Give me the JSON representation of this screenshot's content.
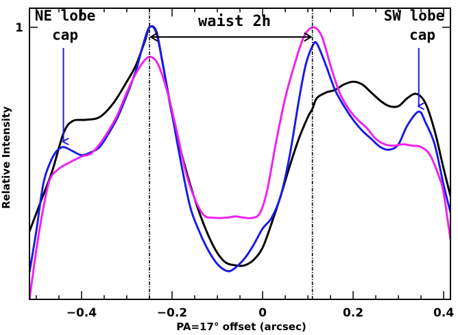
{
  "chart_data": {
    "type": "line",
    "title": "",
    "xlabel": "PA=17° offset (arcsec)",
    "ylabel": "Relative Intensity",
    "xlim": [
      -0.515,
      0.415
    ],
    "ylim": [
      0.0,
      1.07
    ],
    "x_ticks": [
      -0.4,
      -0.2,
      0,
      0.2,
      0.4
    ],
    "x_tick_labels": [
      "−0.4",
      "−0.2",
      "0",
      "0.2",
      "0.4"
    ],
    "y_ticks": [
      1
    ],
    "y_tick_labels": [
      "1"
    ],
    "vertical_lines": [
      -0.25,
      0.11
    ],
    "series": [
      {
        "name": "black",
        "color": "#000000",
        "points": [
          [
            -0.515,
            0.25
          ],
          [
            -0.49,
            0.36
          ],
          [
            -0.465,
            0.47
          ],
          [
            -0.44,
            0.61
          ],
          [
            -0.42,
            0.655
          ],
          [
            -0.39,
            0.66
          ],
          [
            -0.36,
            0.67
          ],
          [
            -0.33,
            0.72
          ],
          [
            -0.3,
            0.8
          ],
          [
            -0.28,
            0.86
          ],
          [
            -0.26,
            0.95
          ],
          [
            -0.25,
            1.0
          ],
          [
            -0.235,
            0.985
          ],
          [
            -0.22,
            0.86
          ],
          [
            -0.2,
            0.68
          ],
          [
            -0.17,
            0.48
          ],
          [
            -0.14,
            0.32
          ],
          [
            -0.11,
            0.2
          ],
          [
            -0.085,
            0.14
          ],
          [
            -0.06,
            0.125
          ],
          [
            -0.04,
            0.125
          ],
          [
            -0.02,
            0.145
          ],
          [
            0.0,
            0.19
          ],
          [
            0.02,
            0.28
          ],
          [
            0.04,
            0.38
          ],
          [
            0.06,
            0.49
          ],
          [
            0.08,
            0.59
          ],
          [
            0.1,
            0.67
          ],
          [
            0.11,
            0.7
          ],
          [
            0.12,
            0.74
          ],
          [
            0.14,
            0.76
          ],
          [
            0.16,
            0.77
          ],
          [
            0.18,
            0.79
          ],
          [
            0.2,
            0.8
          ],
          [
            0.22,
            0.79
          ],
          [
            0.24,
            0.76
          ],
          [
            0.26,
            0.73
          ],
          [
            0.28,
            0.71
          ],
          [
            0.3,
            0.71
          ],
          [
            0.32,
            0.74
          ],
          [
            0.34,
            0.755
          ],
          [
            0.36,
            0.72
          ],
          [
            0.38,
            0.62
          ],
          [
            0.4,
            0.48
          ],
          [
            0.415,
            0.38
          ]
        ]
      },
      {
        "name": "blue",
        "color": "#1a1ae6",
        "points": [
          [
            -0.515,
            0.1
          ],
          [
            -0.5,
            0.25
          ],
          [
            -0.485,
            0.42
          ],
          [
            -0.47,
            0.5
          ],
          [
            -0.455,
            0.545
          ],
          [
            -0.44,
            0.56
          ],
          [
            -0.42,
            0.545
          ],
          [
            -0.4,
            0.53
          ],
          [
            -0.38,
            0.54
          ],
          [
            -0.36,
            0.56
          ],
          [
            -0.34,
            0.61
          ],
          [
            -0.32,
            0.67
          ],
          [
            -0.3,
            0.75
          ],
          [
            -0.28,
            0.84
          ],
          [
            -0.265,
            0.93
          ],
          [
            -0.25,
            1.0
          ],
          [
            -0.235,
            0.98
          ],
          [
            -0.22,
            0.86
          ],
          [
            -0.2,
            0.68
          ],
          [
            -0.18,
            0.5
          ],
          [
            -0.16,
            0.34
          ],
          [
            -0.14,
            0.25
          ],
          [
            -0.12,
            0.18
          ],
          [
            -0.1,
            0.13
          ],
          [
            -0.08,
            0.105
          ],
          [
            -0.065,
            0.11
          ],
          [
            -0.04,
            0.15
          ],
          [
            -0.02,
            0.2
          ],
          [
            0.0,
            0.26
          ],
          [
            0.02,
            0.3
          ],
          [
            0.04,
            0.38
          ],
          [
            0.06,
            0.53
          ],
          [
            0.08,
            0.73
          ],
          [
            0.095,
            0.86
          ],
          [
            0.11,
            0.93
          ],
          [
            0.12,
            0.94
          ],
          [
            0.14,
            0.86
          ],
          [
            0.16,
            0.77
          ],
          [
            0.18,
            0.71
          ],
          [
            0.2,
            0.66
          ],
          [
            0.22,
            0.62
          ],
          [
            0.24,
            0.59
          ],
          [
            0.26,
            0.56
          ],
          [
            0.28,
            0.55
          ],
          [
            0.3,
            0.57
          ],
          [
            0.32,
            0.64
          ],
          [
            0.345,
            0.69
          ],
          [
            0.36,
            0.65
          ],
          [
            0.38,
            0.57
          ],
          [
            0.4,
            0.42
          ],
          [
            0.415,
            0.32
          ]
        ]
      },
      {
        "name": "magenta",
        "color": "#ee22ee",
        "points": [
          [
            -0.515,
            0.0
          ],
          [
            -0.5,
            0.18
          ],
          [
            -0.485,
            0.33
          ],
          [
            -0.47,
            0.44
          ],
          [
            -0.45,
            0.48
          ],
          [
            -0.43,
            0.5
          ],
          [
            -0.4,
            0.525
          ],
          [
            -0.38,
            0.535
          ],
          [
            -0.36,
            0.57
          ],
          [
            -0.34,
            0.62
          ],
          [
            -0.32,
            0.68
          ],
          [
            -0.3,
            0.76
          ],
          [
            -0.28,
            0.83
          ],
          [
            -0.26,
            0.88
          ],
          [
            -0.245,
            0.89
          ],
          [
            -0.23,
            0.86
          ],
          [
            -0.21,
            0.76
          ],
          [
            -0.19,
            0.62
          ],
          [
            -0.17,
            0.47
          ],
          [
            -0.15,
            0.37
          ],
          [
            -0.13,
            0.31
          ],
          [
            -0.11,
            0.3
          ],
          [
            -0.08,
            0.3
          ],
          [
            -0.06,
            0.305
          ],
          [
            -0.04,
            0.3
          ],
          [
            -0.02,
            0.3
          ],
          [
            -0.005,
            0.32
          ],
          [
            0.01,
            0.4
          ],
          [
            0.03,
            0.58
          ],
          [
            0.05,
            0.74
          ],
          [
            0.07,
            0.86
          ],
          [
            0.09,
            0.96
          ],
          [
            0.11,
            1.0
          ],
          [
            0.13,
            0.97
          ],
          [
            0.15,
            0.86
          ],
          [
            0.17,
            0.76
          ],
          [
            0.19,
            0.7
          ],
          [
            0.21,
            0.66
          ],
          [
            0.23,
            0.63
          ],
          [
            0.25,
            0.59
          ],
          [
            0.27,
            0.57
          ],
          [
            0.29,
            0.565
          ],
          [
            0.31,
            0.57
          ],
          [
            0.33,
            0.565
          ],
          [
            0.35,
            0.56
          ],
          [
            0.37,
            0.53
          ],
          [
            0.39,
            0.45
          ],
          [
            0.4,
            0.39
          ],
          [
            0.415,
            0.22
          ]
        ]
      }
    ],
    "annotations": {
      "ne_lobe": "NE lobe",
      "ne_cap": "cap",
      "sw_lobe": "SW lobe",
      "sw_cap": "cap",
      "waist": "waist 2h"
    },
    "annotation_arrows": [
      {
        "name": "ne-cap-arrow",
        "x": -0.44,
        "y_from": 1.03,
        "y_to": 0.57
      },
      {
        "name": "sw-cap-arrow",
        "x": 0.345,
        "y_from": 1.03,
        "y_to": 0.7
      }
    ],
    "waist_arrow": {
      "x_from": -0.25,
      "x_to": 0.11,
      "y": 1.05
    },
    "colors": {
      "black": "#000000",
      "blue": "#1a1ae6",
      "magenta": "#ee22ee"
    }
  }
}
